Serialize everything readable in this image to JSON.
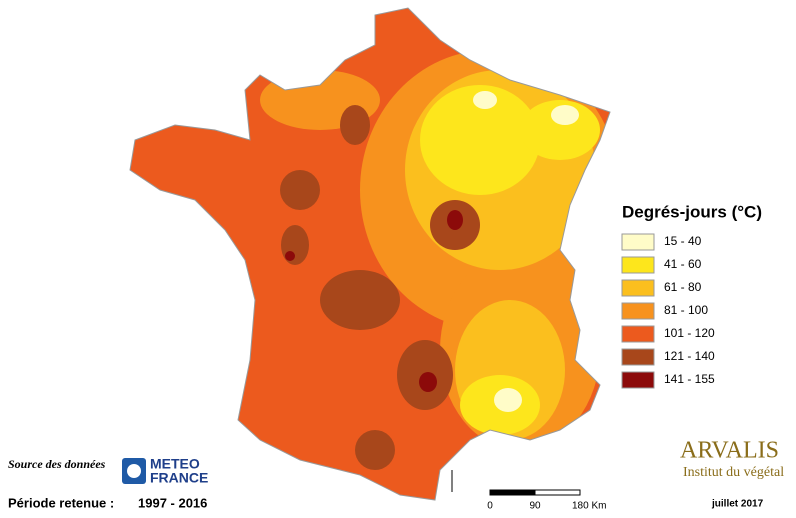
{
  "legend": {
    "title": "Degrés-jours (°C)",
    "items": [
      {
        "label": "15 - 40",
        "color": "#fffcc8"
      },
      {
        "label": "41 - 60",
        "color": "#fde61c"
      },
      {
        "label": "61 - 80",
        "color": "#fbbf1e"
      },
      {
        "label": "81 - 100",
        "color": "#f7921e"
      },
      {
        "label": "101 - 120",
        "color": "#ec5a1e"
      },
      {
        "label": "121 - 140",
        "color": "#a8471b"
      },
      {
        "label": "141 - 155",
        "color": "#8c0a0a"
      }
    ]
  },
  "source": {
    "label": "Source des données",
    "logo": [
      "METEO",
      "FRANCE"
    ]
  },
  "period": {
    "label": "Période retenue :",
    "value": "1997 - 2016"
  },
  "scale_bar": {
    "ticks": [
      "0",
      "90",
      "180 Km"
    ]
  },
  "brand": {
    "name": "ARVALIS",
    "subtitle": "Institut du végétal"
  },
  "date": "juillet 2017"
}
